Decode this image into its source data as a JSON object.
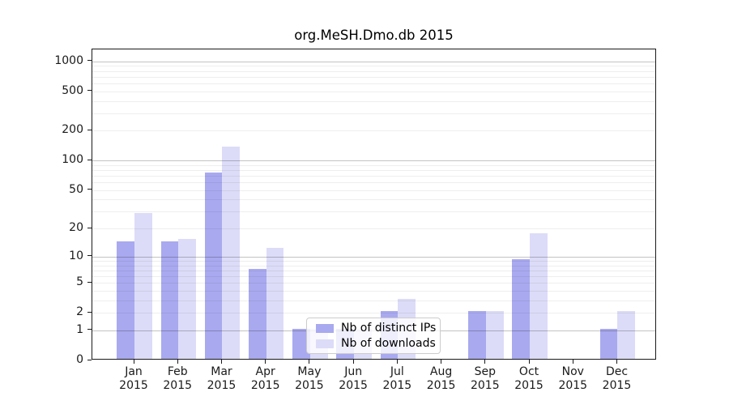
{
  "title": "org.MeSH.Dmo.db 2015",
  "colors": {
    "distinct_ips_bar": "#a9a9f0",
    "downloads_bar": "#dcdcf8",
    "axis": "#1a1a1a",
    "legend_border": "#cccccc"
  },
  "chart_data": {
    "type": "bar",
    "title": "org.MeSH.Dmo.db 2015",
    "categories": [
      "Jan 2015",
      "Feb 2015",
      "Mar 2015",
      "Apr 2015",
      "May 2015",
      "Jun 2015",
      "Jul 2015",
      "Aug 2015",
      "Sep 2015",
      "Oct 2015",
      "Nov 2015",
      "Dec 2015"
    ],
    "series": [
      {
        "name": "Nb of distinct IPs",
        "color": "#a9a9f0",
        "values": [
          14,
          14,
          73,
          7,
          1,
          1,
          2,
          0,
          2,
          9,
          0,
          1
        ]
      },
      {
        "name": "Nb of downloads",
        "color": "#dcdcf8",
        "values": [
          28,
          15,
          133,
          12,
          1,
          1,
          3,
          0,
          2,
          17,
          0,
          2
        ]
      }
    ],
    "xlabel": "",
    "ylabel": "",
    "y_axis": {
      "scale": "log1p",
      "ticks": [
        0,
        1,
        2,
        5,
        10,
        20,
        50,
        100,
        200,
        500,
        1000
      ],
      "major_gridlines": [
        1,
        10,
        100,
        1000
      ],
      "minor_gridlines": [
        2,
        3,
        4,
        5,
        6,
        7,
        8,
        9,
        20,
        30,
        40,
        50,
        60,
        70,
        80,
        90,
        200,
        300,
        400,
        500,
        600,
        700,
        800,
        900
      ],
      "ylim": [
        0,
        1327
      ]
    },
    "grid": true,
    "legend_position": "inside-bottom-center",
    "legend_entries": [
      "Nb of distinct IPs",
      "Nb of downloads"
    ]
  }
}
